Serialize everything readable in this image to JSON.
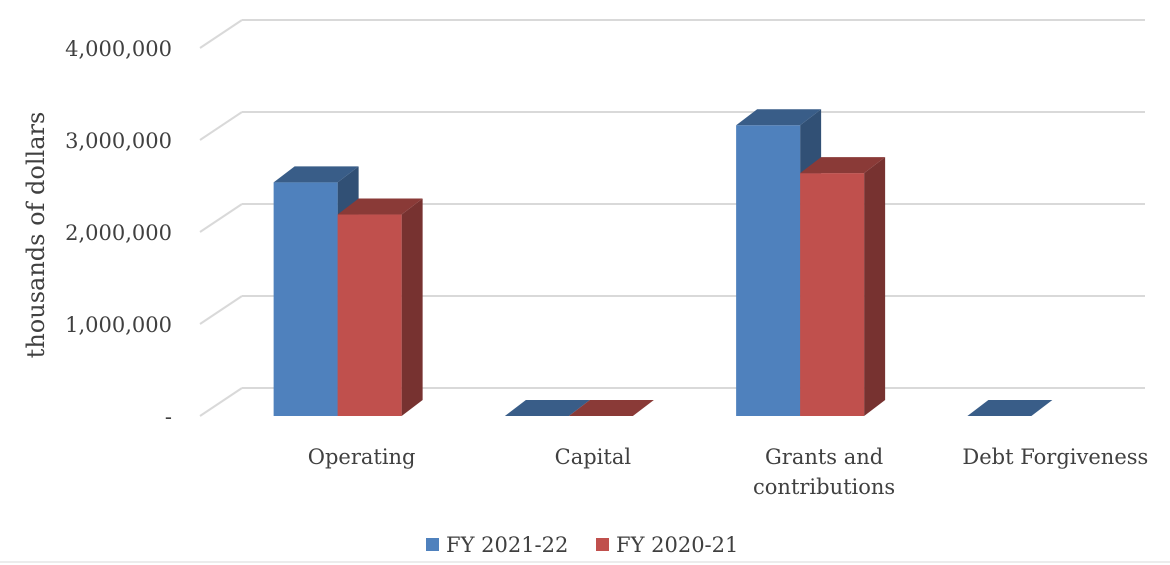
{
  "chart_data": {
    "type": "bar",
    "style": "3d-clustered-column",
    "title": "",
    "ylabel": "thousands of dollars",
    "xlabel": "",
    "categories": [
      "Operating",
      "Capital",
      "Grants and contributions",
      "Debt Forgiveness"
    ],
    "category_lines": [
      [
        "Operating"
      ],
      [
        "Capital"
      ],
      [
        "Grants and",
        "contributions"
      ],
      [
        "Debt Forgiveness"
      ]
    ],
    "series": [
      {
        "name": "FY 2021-22",
        "color": "#4f81bd",
        "values": [
          2540000,
          0,
          3160000,
          0
        ]
      },
      {
        "name": "FY 2020-21",
        "color": "#c0504d",
        "values": [
          2190000,
          0,
          2640000,
          null
        ]
      }
    ],
    "ylim": [
      0,
      4000000
    ],
    "yticks": [
      0,
      1000000,
      2000000,
      3000000,
      4000000
    ],
    "ytick_labels": [
      "-",
      "1,000,000",
      "2,000,000",
      "3,000,000",
      "4,000,000"
    ],
    "grid": true,
    "legend_position": "bottom"
  }
}
